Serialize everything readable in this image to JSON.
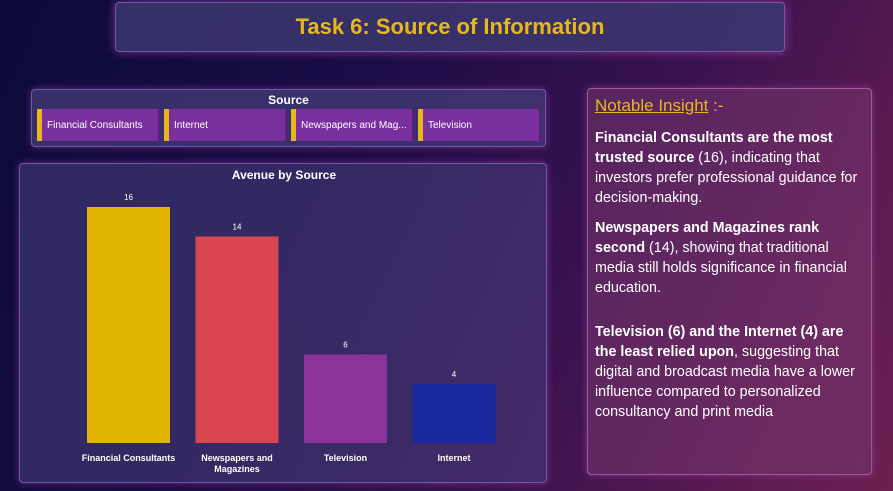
{
  "header": {
    "title": "Task 6: Source of Information"
  },
  "slicer": {
    "title": "Source",
    "items": [
      "Financial Consultants",
      "Internet",
      "Newspapers and Mag...",
      "Television"
    ],
    "accent_color": "#e8b81a",
    "button_color": "#7a2f9e"
  },
  "insight": {
    "heading": "Notable Insight",
    "heading_suffix": " :-",
    "p1_bold": "Financial Consultants are the most trusted source",
    "p1_rest": " (16), indicating that investors prefer professional guidance for decision-making.",
    "p2_bold": "Newspapers and Magazines rank second",
    "p2_rest": " (14), showing that traditional media still holds significance in financial education.",
    "p3_bold": "Television (6) and the Internet (4) are the least relied upon",
    "p3_rest": ", suggesting that digital and broadcast media have a lower influence compared to personalized consultancy and print media"
  },
  "chart_data": {
    "type": "bar",
    "title": "Avenue by Source",
    "categories": [
      "Financial Consultants",
      "Newspapers and Magazines",
      "Television",
      "Internet"
    ],
    "category_lines": [
      [
        "Financial Consultants"
      ],
      [
        "Newspapers and",
        "Magazines"
      ],
      [
        "Television"
      ],
      [
        "Internet"
      ]
    ],
    "values": [
      16,
      14,
      6,
      4
    ],
    "colors": [
      "#e0b400",
      "#d9464f",
      "#8a3399",
      "#1a2a9e"
    ],
    "xlabel": "",
    "ylabel": "",
    "ylim": [
      0,
      16
    ],
    "grid": false,
    "legend": "none"
  }
}
